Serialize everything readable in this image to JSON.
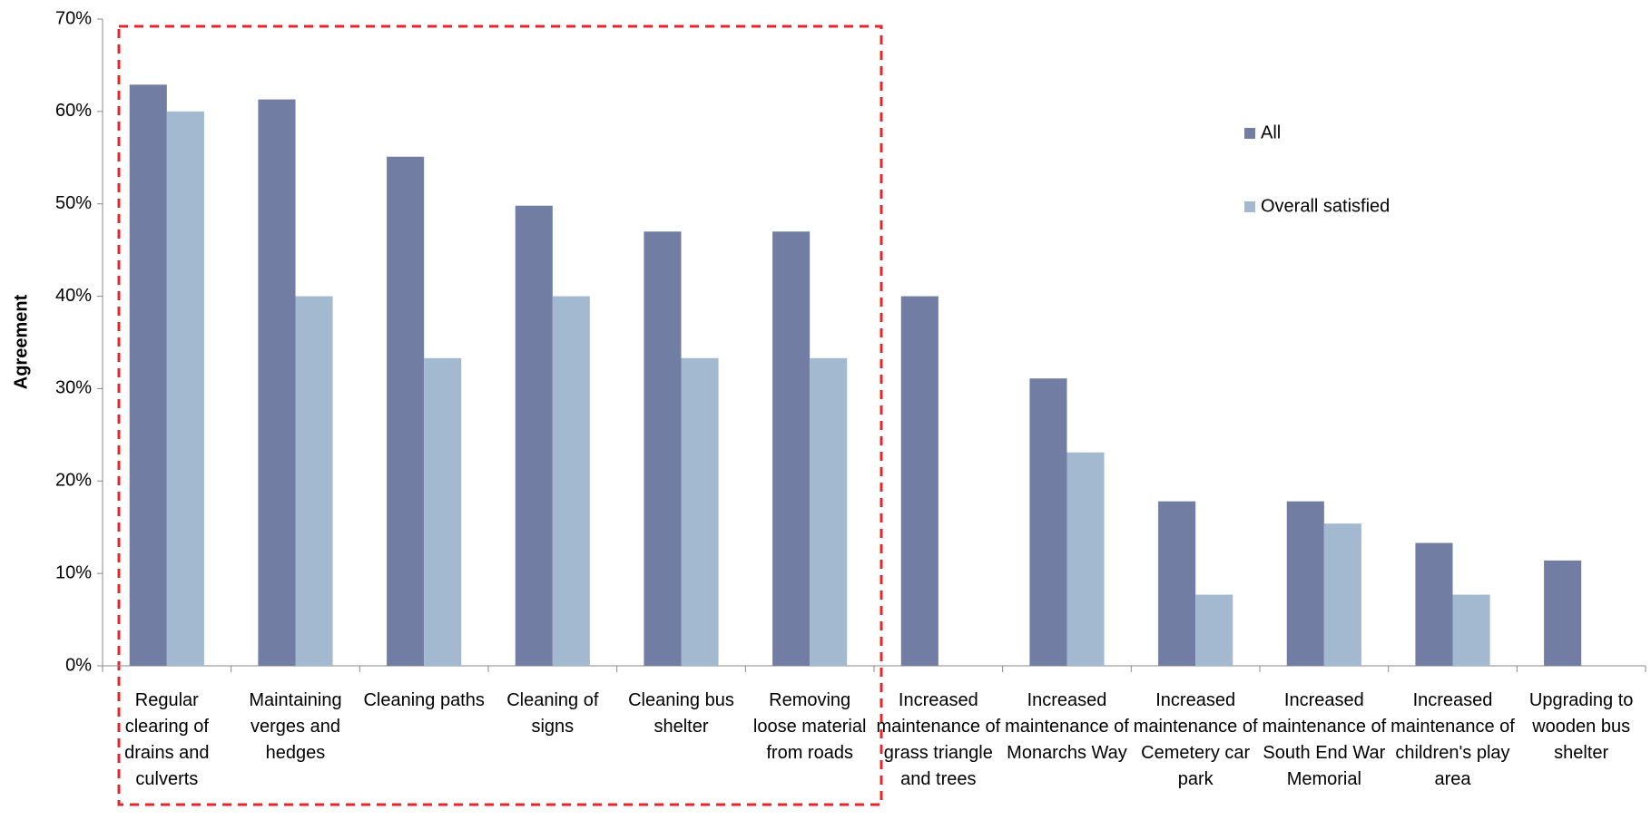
{
  "chart_data": {
    "type": "bar",
    "y_label": "Agreement",
    "categories": [
      "Regular clearing of drains and culverts",
      "Maintaining verges and hedges",
      "Cleaning paths",
      "Cleaning of signs",
      "Cleaning bus shelter",
      "Removing loose material from roads",
      "Increased maintenance of grass triangle and trees",
      "Increased maintenance of Monarchs Way",
      "Increased maintenance of Cemetery car park",
      "Increased maintenance of South End War Memorial",
      "Increased maintenance of children's play area",
      "Upgrading to wooden bus shelter"
    ],
    "series": [
      {
        "name": "All",
        "color": "#717da2",
        "values": [
          62.9,
          61.3,
          55.1,
          49.8,
          47.0,
          47.0,
          40.0,
          31.1,
          17.8,
          17.8,
          13.3,
          11.4
        ]
      },
      {
        "name": "Overall satisfied",
        "color": "#a3b9d0",
        "values": [
          60.0,
          40.0,
          33.3,
          40.0,
          33.3,
          33.3,
          0,
          23.1,
          7.7,
          15.4,
          7.7,
          0
        ]
      }
    ],
    "ylim": [
      0,
      70
    ],
    "yticks": [
      {
        "value": 0,
        "label": "0%"
      },
      {
        "value": 10,
        "label": "10%"
      },
      {
        "value": 20,
        "label": "20%"
      },
      {
        "value": 30,
        "label": "30%"
      },
      {
        "value": 40,
        "label": "40%"
      },
      {
        "value": 50,
        "label": "50%"
      },
      {
        "value": 60,
        "label": "60%"
      },
      {
        "value": 70,
        "label": "70%"
      }
    ],
    "grid": false,
    "legend": "right"
  }
}
